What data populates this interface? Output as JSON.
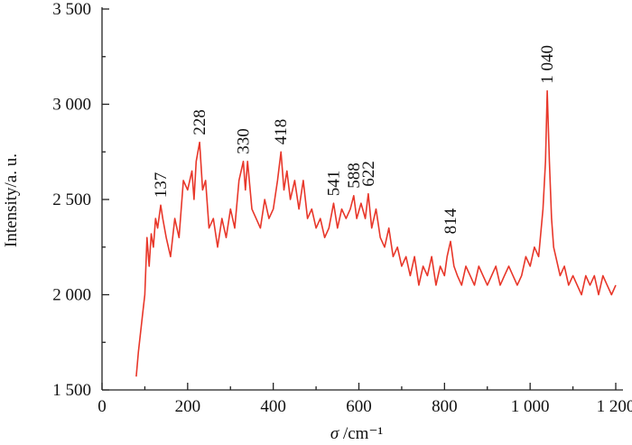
{
  "chart_data": {
    "type": "line",
    "xlabel_symbol": "σ",
    "xlabel_unit": " /cm⁻¹",
    "ylabel": "Intensity/a. u.",
    "xlim": [
      50,
      1200
    ],
    "ylim": [
      1500,
      3500
    ],
    "x_ticks": [
      0,
      200,
      400,
      600,
      800,
      1000,
      1200
    ],
    "x_tick_labels": [
      "0",
      "200",
      "400",
      "600",
      "800",
      "1 000",
      "1 200"
    ],
    "y_ticks": [
      1500,
      2000,
      2500,
      3000,
      3500
    ],
    "y_tick_labels": [
      "1 500",
      "2 000",
      "2 500",
      "3 000",
      "3 500"
    ],
    "line_color": "#e8372a",
    "grid": false,
    "series": [
      {
        "x": [
          80,
          85,
          95,
          100,
          105,
          110,
          115,
          120,
          125,
          130,
          137,
          142,
          150,
          160,
          170,
          180,
          190,
          200,
          210,
          215,
          220,
          228,
          235,
          242,
          250,
          260,
          270,
          280,
          290,
          300,
          310,
          320,
          330,
          335,
          340,
          350,
          360,
          370,
          380,
          390,
          400,
          410,
          418,
          425,
          432,
          440,
          450,
          460,
          470,
          480,
          490,
          500,
          510,
          520,
          530,
          541,
          550,
          560,
          570,
          580,
          588,
          595,
          605,
          615,
          622,
          630,
          640,
          650,
          660,
          670,
          680,
          690,
          700,
          710,
          720,
          730,
          740,
          750,
          760,
          770,
          780,
          790,
          800,
          806,
          814,
          822,
          830,
          840,
          850,
          860,
          870,
          880,
          890,
          900,
          910,
          920,
          930,
          940,
          950,
          960,
          970,
          980,
          990,
          1000,
          1010,
          1020,
          1030,
          1036,
          1040,
          1045,
          1050,
          1055,
          1060,
          1070,
          1080,
          1090,
          1100,
          1110,
          1120,
          1130,
          1140,
          1150,
          1160,
          1170,
          1180,
          1190,
          1200
        ],
        "y": [
          1570,
          1700,
          1900,
          2000,
          2300,
          2150,
          2320,
          2250,
          2400,
          2350,
          2470,
          2400,
          2300,
          2200,
          2400,
          2300,
          2600,
          2550,
          2650,
          2500,
          2700,
          2800,
          2550,
          2600,
          2350,
          2400,
          2250,
          2400,
          2300,
          2450,
          2350,
          2600,
          2700,
          2550,
          2700,
          2450,
          2400,
          2350,
          2500,
          2400,
          2450,
          2600,
          2750,
          2550,
          2650,
          2500,
          2600,
          2450,
          2600,
          2400,
          2450,
          2350,
          2400,
          2300,
          2350,
          2480,
          2350,
          2450,
          2400,
          2450,
          2520,
          2400,
          2480,
          2400,
          2530,
          2350,
          2450,
          2300,
          2250,
          2350,
          2200,
          2250,
          2150,
          2200,
          2100,
          2200,
          2050,
          2150,
          2100,
          2200,
          2050,
          2150,
          2100,
          2200,
          2280,
          2150,
          2100,
          2050,
          2150,
          2100,
          2050,
          2150,
          2100,
          2050,
          2100,
          2150,
          2050,
          2100,
          2150,
          2100,
          2050,
          2100,
          2200,
          2150,
          2250,
          2200,
          2450,
          2700,
          3070,
          2700,
          2400,
          2250,
          2200,
          2100,
          2150,
          2050,
          2100,
          2050,
          2000,
          2100,
          2050,
          2100,
          2000,
          2100,
          2050,
          2000,
          2050
        ]
      }
    ],
    "annotations": [
      {
        "x": 137,
        "y": 2470,
        "label": "137"
      },
      {
        "x": 228,
        "y": 2800,
        "label": "228"
      },
      {
        "x": 330,
        "y": 2700,
        "label": "330"
      },
      {
        "x": 418,
        "y": 2750,
        "label": "418"
      },
      {
        "x": 541,
        "y": 2480,
        "label": "541"
      },
      {
        "x": 588,
        "y": 2520,
        "label": "588"
      },
      {
        "x": 622,
        "y": 2530,
        "label": "622"
      },
      {
        "x": 814,
        "y": 2280,
        "label": "814"
      },
      {
        "x": 1040,
        "y": 3070,
        "label": "1 040"
      }
    ]
  }
}
